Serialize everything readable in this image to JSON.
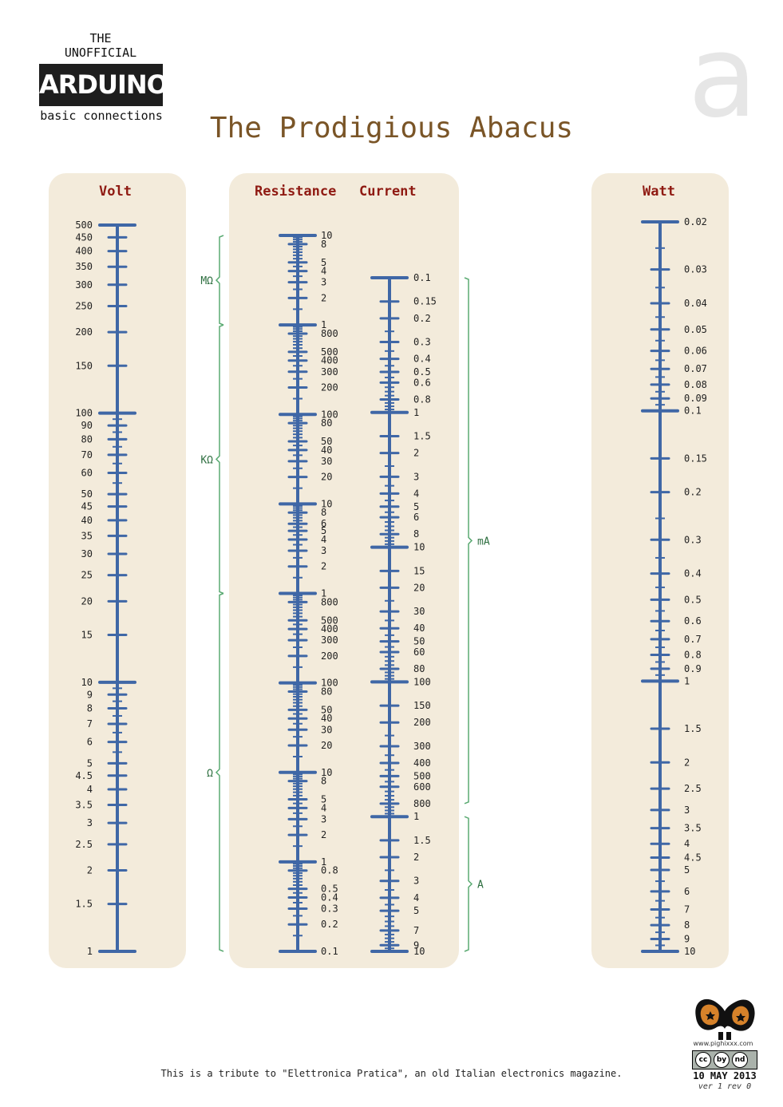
{
  "brand": {
    "line1": "THE",
    "line2": "UNOFFICIAL",
    "name": "ARDUINO",
    "subtitle": "basic connections"
  },
  "big_letter": "a",
  "title": "The Prodigious Abacus",
  "footer": {
    "note": "This is a tribute to \"Elettronica Pratica\", an old Italian electronics magazine.",
    "url": "www.pighixxx.com",
    "date": "10 MAY 2013",
    "version": "ver 1 rev 0",
    "license_icons": [
      "cc",
      "by",
      "nd"
    ]
  },
  "colors": {
    "scale": "#3f67a6",
    "panel": "#f3ebdb",
    "heading": "#8f1a12",
    "bracket": "#5aaa72",
    "title": "#7a5527"
  },
  "chart_data": {
    "type": "nomogram",
    "scale_type": "logarithmic",
    "scales": [
      {
        "name": "Volt",
        "title": "Volt",
        "unit": "V",
        "range": [
          1,
          500
        ],
        "labels": [
          500,
          450,
          400,
          350,
          300,
          250,
          200,
          150,
          100,
          90,
          80,
          70,
          60,
          50,
          45,
          40,
          35,
          30,
          25,
          20,
          15,
          10,
          9,
          8,
          7,
          6,
          5,
          4.5,
          4,
          3.5,
          3,
          2.5,
          2,
          1.5,
          1
        ],
        "major": [
          500,
          100,
          10
        ]
      },
      {
        "name": "Resistance",
        "title": "Resistance",
        "unit": "Ω",
        "range": [
          0.1,
          10000000
        ],
        "labels": [
          "10",
          "8",
          "5",
          "4",
          "3",
          "2",
          "1",
          "800",
          "500",
          "400",
          "300",
          "200",
          "100",
          "80",
          "50",
          "40",
          "30",
          "20",
          "10",
          "8",
          "6",
          "5",
          "4",
          "3",
          "2",
          "1",
          "800",
          "500",
          "400",
          "300",
          "200",
          "100",
          "80",
          "50",
          "40",
          "30",
          "20",
          "10",
          "8",
          "5",
          "4",
          "3",
          "2",
          "1",
          "0.8",
          "0.5",
          "0.4",
          "0.3",
          "0.2",
          "0.1"
        ],
        "groups": [
          {
            "unit": "MΩ",
            "from": 1000000,
            "to": 10000000
          },
          {
            "unit": "KΩ",
            "from": 1000,
            "to": 1000000
          },
          {
            "unit": "Ω",
            "from": 0.1,
            "to": 1000
          }
        ]
      },
      {
        "name": "Current",
        "title": "Current",
        "unit": "A",
        "range": [
          0.0001,
          10
        ],
        "labels": [
          "0.1",
          "0.15",
          "0.2",
          "0.3",
          "0.4",
          "0.5",
          "0.6",
          "0.8",
          "1",
          "1.5",
          "2",
          "3",
          "4",
          "5",
          "6",
          "8",
          "10",
          "15",
          "20",
          "30",
          "40",
          "50",
          "60",
          "80",
          "100",
          "150",
          "200",
          "300",
          "400",
          "500",
          "600",
          "800",
          "1",
          "1.5",
          "2",
          "3",
          "4",
          "5",
          "7",
          "9",
          "10"
        ],
        "groups": [
          {
            "unit": "mA",
            "from": 0.1,
            "to": 800
          },
          {
            "unit": "A",
            "from": 1,
            "to": 10
          }
        ]
      },
      {
        "name": "Watt",
        "title": "Watt",
        "unit": "W",
        "range": [
          0.02,
          10
        ],
        "labels": [
          "0.02",
          "0.03",
          "0.04",
          "0.05",
          "0.06",
          "0.07",
          "0.08",
          "0.09",
          "0.1",
          "0.15",
          "0.2",
          "0.3",
          "0.4",
          "0.5",
          "0.6",
          "0.7",
          "0.8",
          "0.9",
          "1",
          "1.5",
          "2",
          "2.5",
          "3",
          "3.5",
          "4",
          "4.5",
          "5",
          "6",
          "7",
          "8",
          "9",
          "10"
        ],
        "major": [
          0.02,
          0.1,
          1,
          10
        ]
      }
    ]
  }
}
